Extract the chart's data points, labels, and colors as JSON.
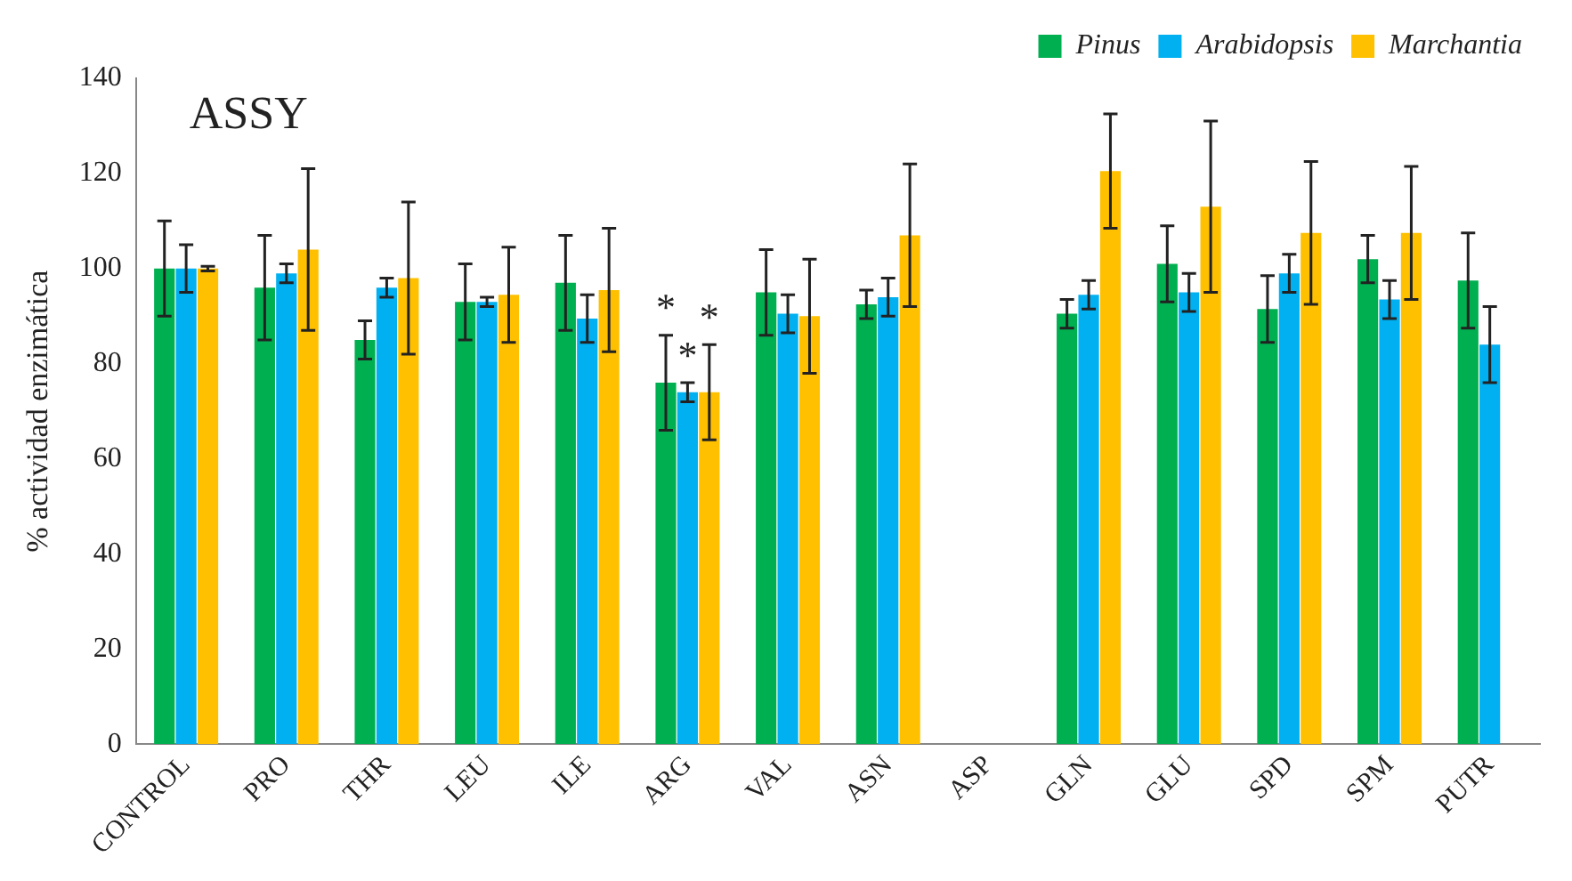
{
  "chart_data": {
    "type": "bar",
    "title": "ASSY",
    "ylabel": "% actividad enzimática",
    "categories": [
      "CONTROL",
      "PRO",
      "THR",
      "LEU",
      "ILE",
      "ARG",
      "VAL",
      "ASN",
      "ASP",
      "GLN",
      "GLU",
      "SPD",
      "SPM",
      "PUTR"
    ],
    "series": [
      {
        "name": "Pinus",
        "color": "#00b050",
        "values": [
          100,
          96,
          85,
          93,
          97,
          76,
          95,
          92.5,
          null,
          90.5,
          101,
          91.5,
          102,
          97.5
        ],
        "errors": [
          10,
          11,
          4,
          8,
          10,
          10,
          9,
          3,
          null,
          3,
          8,
          7,
          5,
          10
        ]
      },
      {
        "name": "Arabidopsis",
        "color": "#00b0f0",
        "values": [
          100,
          99,
          96,
          93,
          89.5,
          74,
          90.5,
          94,
          null,
          94.5,
          95,
          99,
          93.5,
          84
        ],
        "errors": [
          5,
          2,
          2,
          1,
          5,
          2,
          4,
          4,
          null,
          3,
          4,
          4,
          4,
          8
        ]
      },
      {
        "name": "Marchantia",
        "color": "#ffc000",
        "values": [
          100,
          104,
          98,
          94.5,
          95.5,
          74,
          90,
          107,
          null,
          120.5,
          113,
          107.5,
          107.5,
          null
        ],
        "errors": [
          0.5,
          17,
          16,
          10,
          13,
          10,
          12,
          15,
          null,
          12,
          18,
          15,
          14,
          null
        ]
      }
    ],
    "annotations": [
      {
        "text": "*",
        "x": "ARG",
        "y": 86
      },
      {
        "text": "*",
        "x": "ARG",
        "y": 76
      },
      {
        "text": "*",
        "x": "ARG",
        "y": 84
      }
    ],
    "ylim": [
      0,
      140
    ],
    "yticks": [
      0,
      20,
      40,
      60,
      80,
      100,
      120,
      140
    ],
    "grid": false,
    "legend": "top right"
  }
}
